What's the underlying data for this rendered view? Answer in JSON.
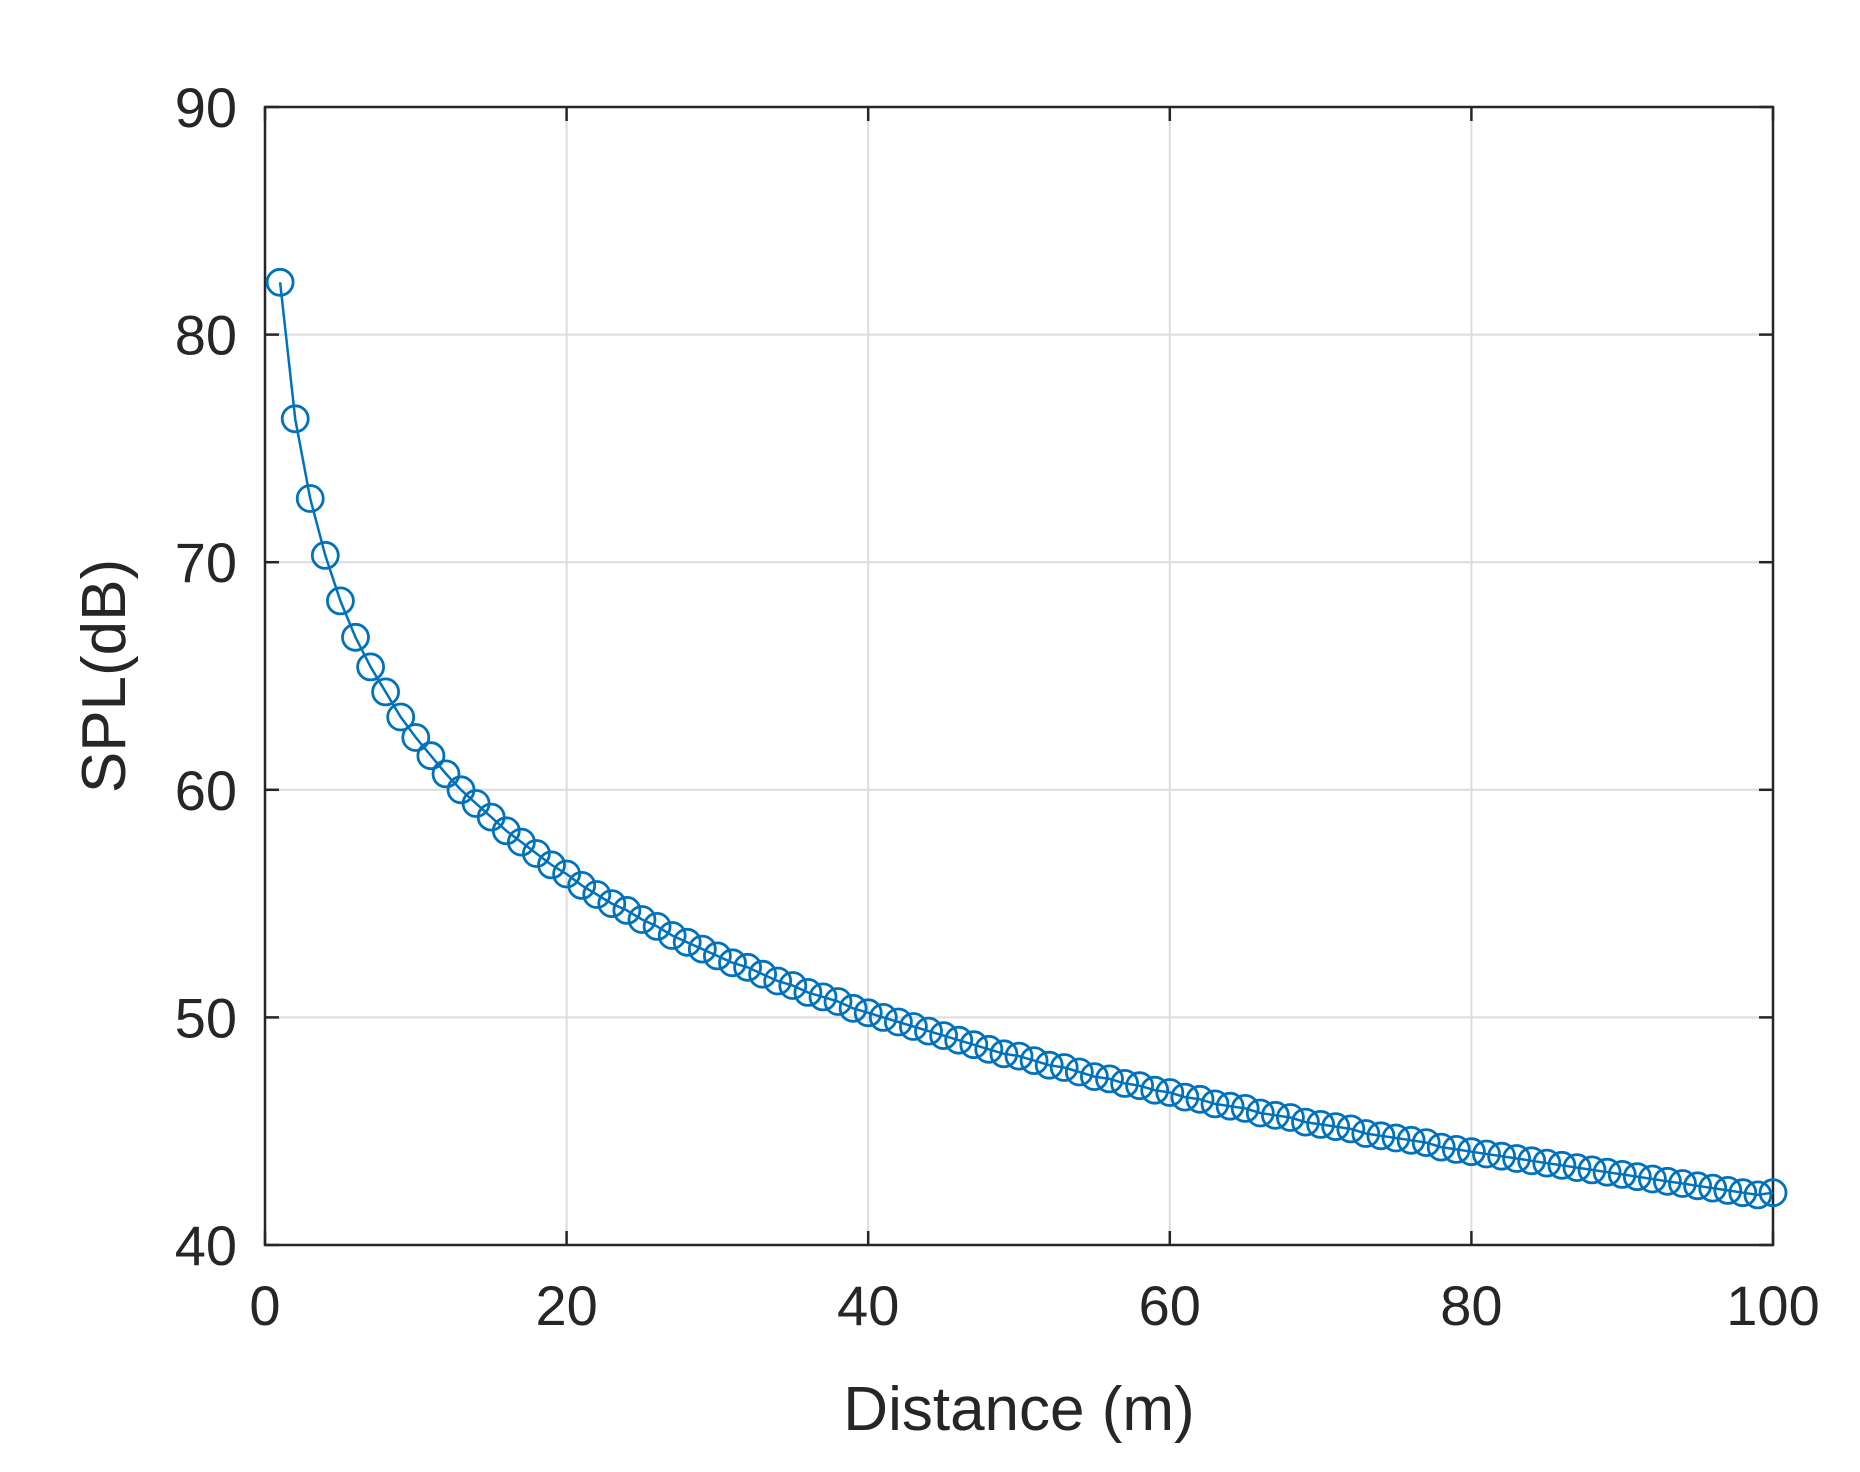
{
  "chart_data": {
    "type": "line",
    "xlabel": "Distance (m)",
    "ylabel": "SPL(dB)",
    "xlim": [
      0,
      100
    ],
    "ylim": [
      40,
      90
    ],
    "xticks": [
      0,
      20,
      40,
      60,
      80,
      100
    ],
    "yticks": [
      40,
      50,
      60,
      70,
      80,
      90
    ],
    "xtick_labels": [
      "0",
      "20",
      "40",
      "60",
      "80",
      "100"
    ],
    "ytick_labels": [
      "40",
      "50",
      "60",
      "70",
      "80",
      "90"
    ],
    "grid": true,
    "marker": "circle",
    "series": [
      {
        "color": "#0072BD",
        "x": [
          1,
          2,
          3,
          4,
          5,
          6,
          7,
          8,
          9,
          10,
          11,
          12,
          13,
          14,
          15,
          16,
          17,
          18,
          19,
          20,
          21,
          22,
          23,
          24,
          25,
          26,
          27,
          28,
          29,
          30,
          31,
          32,
          33,
          34,
          35,
          36,
          37,
          38,
          39,
          40,
          41,
          42,
          43,
          44,
          45,
          46,
          47,
          48,
          49,
          50,
          51,
          52,
          53,
          54,
          55,
          56,
          57,
          58,
          59,
          60,
          61,
          62,
          63,
          64,
          65,
          66,
          67,
          68,
          69,
          70,
          71,
          72,
          73,
          74,
          75,
          76,
          77,
          78,
          79,
          80,
          81,
          82,
          83,
          84,
          85,
          86,
          87,
          88,
          89,
          90,
          91,
          92,
          93,
          94,
          95,
          96,
          97,
          98,
          99,
          100
        ],
        "y": [
          82.3,
          76.3,
          72.8,
          70.3,
          68.3,
          66.7,
          65.4,
          64.3,
          63.2,
          62.3,
          61.5,
          60.7,
          60.0,
          59.4,
          58.8,
          58.2,
          57.7,
          57.2,
          56.7,
          56.3,
          55.8,
          55.4,
          55.0,
          54.7,
          54.3,
          54.0,
          53.6,
          53.3,
          53.0,
          52.7,
          52.4,
          52.2,
          51.9,
          51.6,
          51.4,
          51.1,
          50.9,
          50.7,
          50.4,
          50.2,
          50.0,
          49.8,
          49.6,
          49.4,
          49.2,
          49.0,
          48.8,
          48.6,
          48.4,
          48.3,
          48.1,
          47.9,
          47.8,
          47.6,
          47.4,
          47.3,
          47.1,
          47.0,
          46.8,
          46.7,
          46.5,
          46.4,
          46.2,
          46.1,
          46.0,
          45.8,
          45.7,
          45.6,
          45.4,
          45.3,
          45.2,
          45.1,
          44.9,
          44.8,
          44.7,
          44.6,
          44.5,
          44.3,
          44.2,
          44.1,
          44.0,
          43.9,
          43.8,
          43.7,
          43.6,
          43.5,
          43.4,
          43.3,
          43.2,
          43.1,
          43.0,
          42.9,
          42.8,
          42.7,
          42.6,
          42.5,
          42.4,
          42.3,
          42.2,
          42.3
        ]
      }
    ]
  }
}
